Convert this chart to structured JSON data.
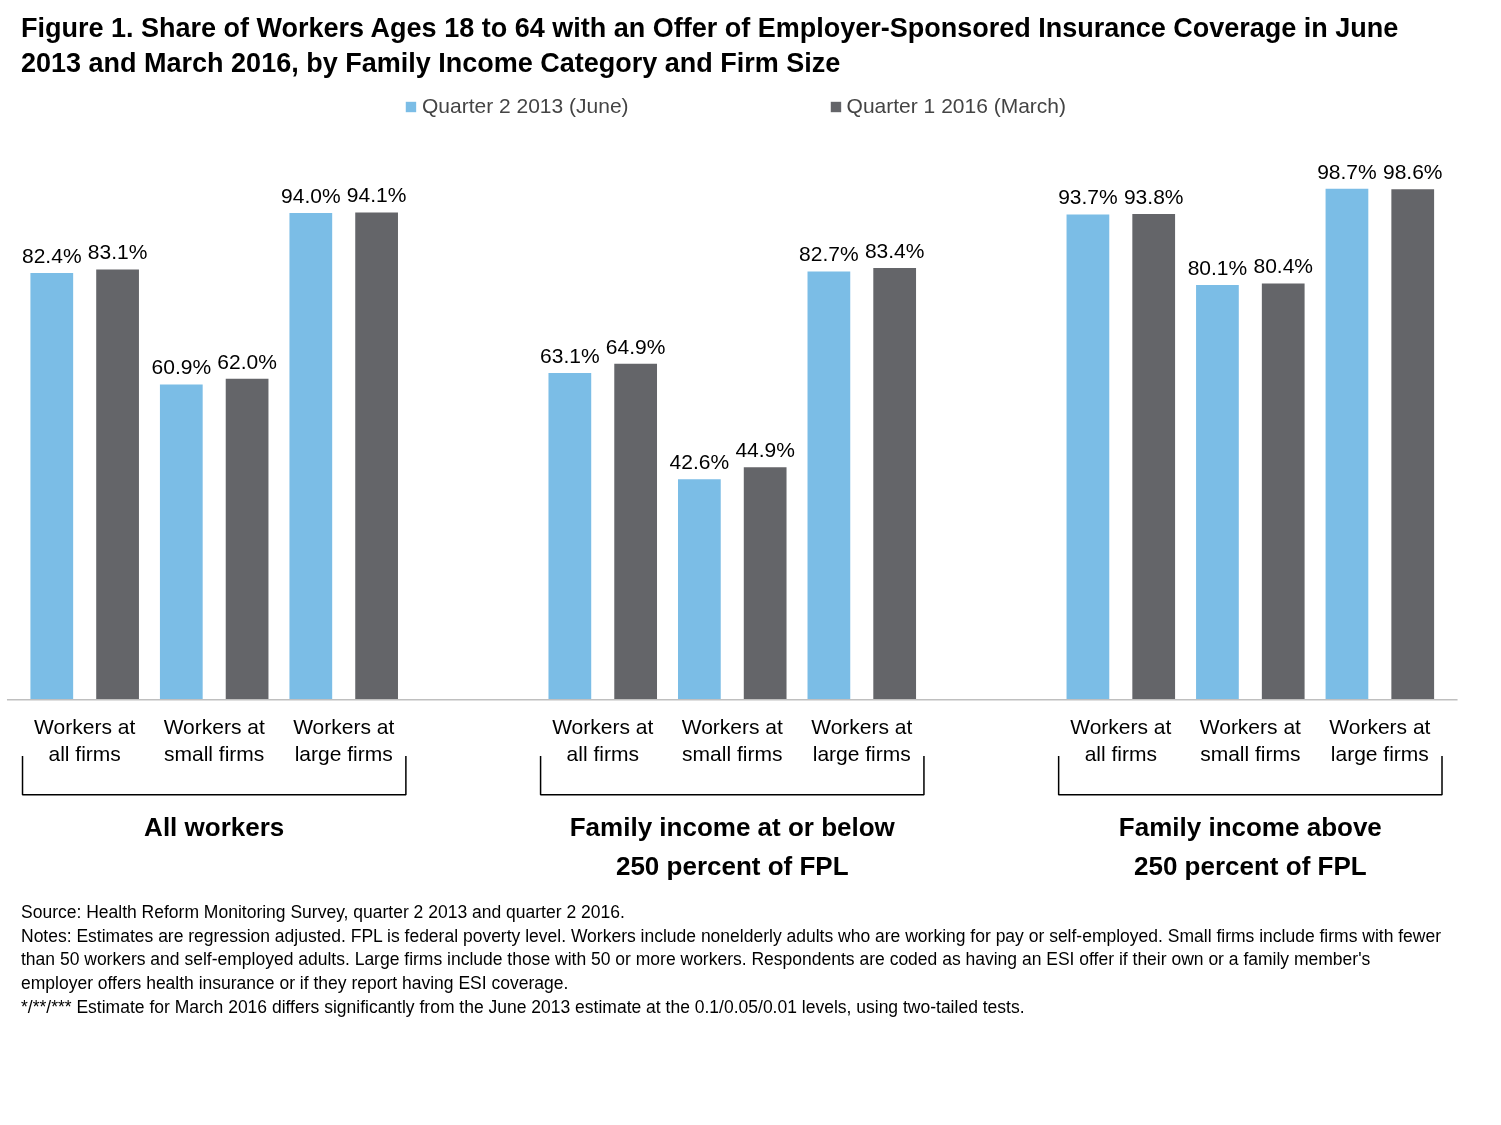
{
  "chart_data": {
    "type": "bar",
    "title": "Figure 1. Share of Workers Ages 18 to 64 with an Offer of Employer-Sponsored Insurance Coverage in June 2013 and March 2016, by Family Income Category and Firm Size",
    "categories": [
      "Workers at\nall firms",
      "Workers at\nsmall firms",
      "Workers at\nlarge firms",
      null,
      "Workers at\nall firms",
      "Workers at\nsmall firms",
      "Workers at\nlarge firms",
      null,
      "Workers at\nall firms",
      "Workers at\nsmall firms",
      "Workers at\nlarge firms"
    ],
    "series": [
      {
        "name": "Quarter 2 2013 (June)",
        "color": "#7bbde6",
        "values": [
          82.4,
          60.9,
          94.0,
          null,
          63.1,
          42.6,
          82.7,
          null,
          93.7,
          80.1,
          98.7
        ],
        "value_labels": [
          "82.4%",
          "60.9%",
          "94.0%",
          null,
          "63.1%",
          "42.6%",
          "82.7%",
          null,
          "93.7%",
          "80.1%",
          "98.7%"
        ]
      },
      {
        "name": "Quarter 1 2016 (March)",
        "color": "#646569",
        "values": [
          83.1,
          62.0,
          94.1,
          null,
          64.9,
          44.9,
          83.4,
          null,
          93.8,
          80.4,
          98.6
        ],
        "value_labels": [
          "83.1%",
          "62.0%",
          "94.1%",
          null,
          "64.9%",
          "44.9%",
          "83.4%",
          null,
          "93.8%",
          "80.4%",
          "98.6%"
        ]
      }
    ],
    "legend": "top",
    "grid": false,
    "annotations": [
      "All workers",
      "Family income at or below\n250 percent of FPL",
      "Family income above\n250 percent of FPL",
      "Source: Health Reform Monitoring Survey, quarter 2 2013 and quarter 2 2016.",
      "Notes: Estimates are regression adjusted. FPL is federal poverty level. Workers include nonelderly adults who are working for pay or self-employed. Small firms include firms with fewer than 50 workers and self-employed adults. Large firms include those with 50 or more workers. Respondents are coded as having an ESI offer if their own or a family member's employer offers health insurance or if they report having ESI coverage.",
      "*/**/*** Estimate for March 2016 differs significantly from the June 2013 estimate at the 0.1/0.05/0.01 levels, using two-tailed tests."
    ]
  }
}
